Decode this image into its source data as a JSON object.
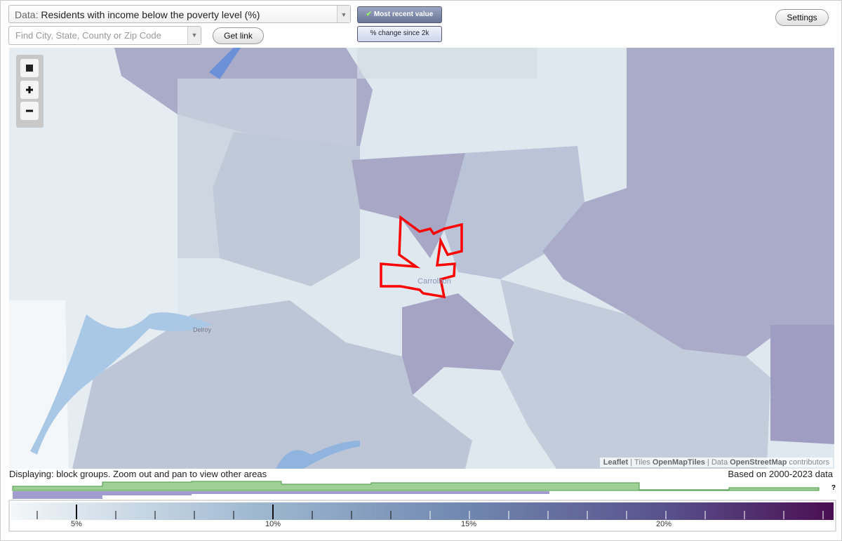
{
  "toolbar": {
    "data_label": "Data:",
    "data_value": "Residents with income below the poverty level (%)",
    "search_placeholder": "Find City, State, County or Zip Code",
    "get_link": "Get link",
    "most_recent": "Most recent value",
    "pct_change": "% change since 2k",
    "settings": "Settings"
  },
  "map": {
    "places": [
      "Carrollton",
      "Delroy"
    ],
    "attribution": [
      "Leaflet",
      "|",
      "Tiles",
      "OpenMapTiles",
      "|",
      "Data",
      "OpenStreetMap",
      "contributors"
    ]
  },
  "status": {
    "displaying": "Displaying: block groups. Zoom out and pan to view other areas",
    "based_on": "Based on 2000-2023 data"
  },
  "legend": {
    "ticks": [
      "5%",
      "10%",
      "15%",
      "20%"
    ],
    "help": "?"
  }
}
